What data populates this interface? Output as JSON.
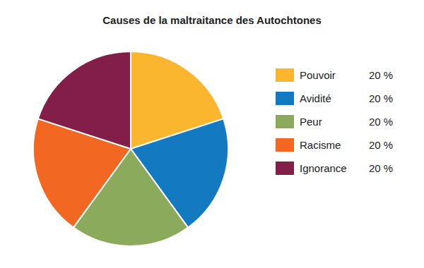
{
  "chart_data": {
    "type": "pie",
    "title": "Causes de la maltraitance des Autochtones",
    "categories": [
      "Pouvoir",
      "Avidité",
      "Peur",
      "Racisme",
      "Ignorance"
    ],
    "values": [
      20,
      20,
      20,
      20,
      20
    ],
    "value_labels": [
      "20 %",
      "20 %",
      "20 %",
      "20 %",
      "20 %"
    ],
    "colors": [
      "#fbb62f",
      "#1379c0",
      "#8baa5c",
      "#f26722",
      "#821e47"
    ],
    "legend": "right"
  }
}
